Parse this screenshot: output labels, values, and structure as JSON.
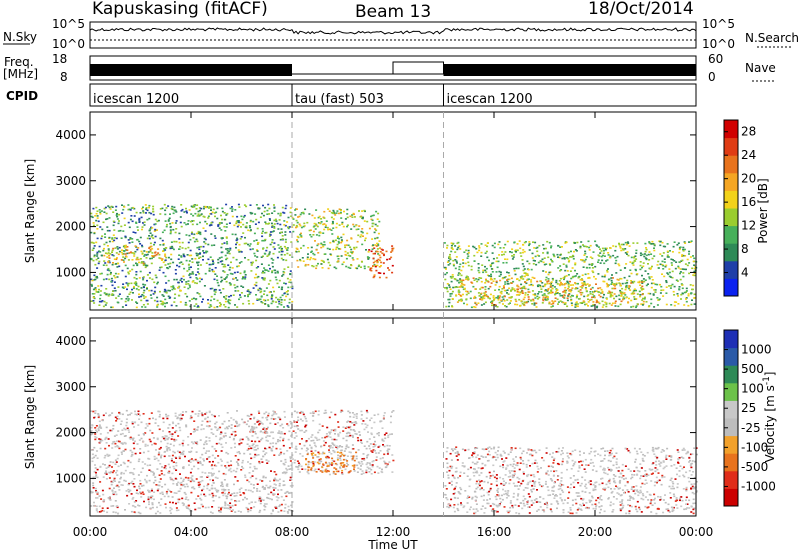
{
  "header": {
    "station": "Kapuskasing (fitACF)",
    "beam": "Beam 13",
    "date": "18/Oct/2014"
  },
  "side_labels": {
    "nsky": "N.Sky",
    "freq": "Freq.",
    "freq_unit": "[MHz]",
    "cpid": "CPID",
    "nsearch": "N.Search",
    "nave": "Nave"
  },
  "noise_ticks": {
    "left": [
      "10^5",
      "10^0"
    ],
    "right": [
      "10^5",
      "10^0"
    ]
  },
  "freq_ticks": {
    "left": [
      "18",
      "8"
    ],
    "right": [
      "60",
      "0"
    ]
  },
  "cpid_segments": [
    {
      "label": "icescan 1200",
      "start": 0,
      "end": 8
    },
    {
      "label": "tau (fast) 503",
      "start": 8,
      "end": 14
    },
    {
      "label": "icescan 1200",
      "start": 14,
      "end": 24
    }
  ],
  "colors": {
    "power": [
      "#0b22f0",
      "#1f3fa8",
      "#2e8a57",
      "#47b05a",
      "#9acd2f",
      "#f2d21a",
      "#f5a623",
      "#e8731d",
      "#e03c14",
      "#d10000"
    ],
    "velocity": [
      "#1e2fb5",
      "#2a5aa8",
      "#2e8a57",
      "#6cc24a",
      "#c8c8c8",
      "#bdbdbd",
      "#f2a12b",
      "#e8731d",
      "#e02d1a",
      "#cc0000"
    ]
  },
  "chart_data": [
    {
      "type": "heatmap",
      "panel": "power",
      "ylabel": "Slant Range [km]",
      "xlim": [
        "00:00",
        "24:00"
      ],
      "ylim": [
        180,
        4500
      ],
      "yticks": [
        1000,
        2000,
        3000,
        4000
      ],
      "colorbar": {
        "label": "Power [dB]",
        "ticks": [
          4,
          8,
          12,
          16,
          20,
          24,
          28
        ],
        "range": [
          0,
          30
        ]
      },
      "echo_regions": [
        {
          "t_start": 0.0,
          "t_end": 8.0,
          "r_min": 250,
          "r_max": 2500,
          "level_db": 10
        },
        {
          "t_start": 0.5,
          "t_end": 3.0,
          "r_min": 1200,
          "r_max": 1600,
          "level_db": 18
        },
        {
          "t_start": 8.0,
          "t_end": 11.5,
          "r_min": 1100,
          "r_max": 2400,
          "level_db": 14
        },
        {
          "t_start": 11.0,
          "t_end": 12.0,
          "r_min": 900,
          "r_max": 1600,
          "level_db": 24
        },
        {
          "t_start": 14.0,
          "t_end": 24.0,
          "r_min": 250,
          "r_max": 1700,
          "level_db": 12
        },
        {
          "t_start": 14.5,
          "t_end": 22.0,
          "r_min": 300,
          "r_max": 900,
          "level_db": 18
        }
      ]
    },
    {
      "type": "heatmap",
      "panel": "velocity",
      "ylabel": "Slant Range [km]",
      "xlabel": "Time UT",
      "xticks": [
        "00:00",
        "04:00",
        "08:00",
        "12:00",
        "16:00",
        "20:00",
        "00:00"
      ],
      "ylim": [
        180,
        4500
      ],
      "yticks": [
        1000,
        2000,
        3000,
        4000
      ],
      "colorbar": {
        "label": "Velocity [m s^-1]",
        "ticks": [
          "1000",
          "500",
          "100",
          "25",
          "-25",
          "-100",
          "-500",
          "-1000"
        ]
      },
      "echo_regions": [
        {
          "t_start": 0.0,
          "t_end": 8.0,
          "r_min": 250,
          "r_max": 2500,
          "velocity": 0
        },
        {
          "t_start": 8.0,
          "t_end": 12.0,
          "r_min": 1100,
          "r_max": 2500,
          "velocity": 0
        },
        {
          "t_start": 8.5,
          "t_end": 10.5,
          "r_min": 1100,
          "r_max": 1600,
          "velocity": -300
        },
        {
          "t_start": 14.0,
          "t_end": 24.0,
          "r_min": 250,
          "r_max": 1700,
          "velocity": 0
        }
      ]
    }
  ]
}
